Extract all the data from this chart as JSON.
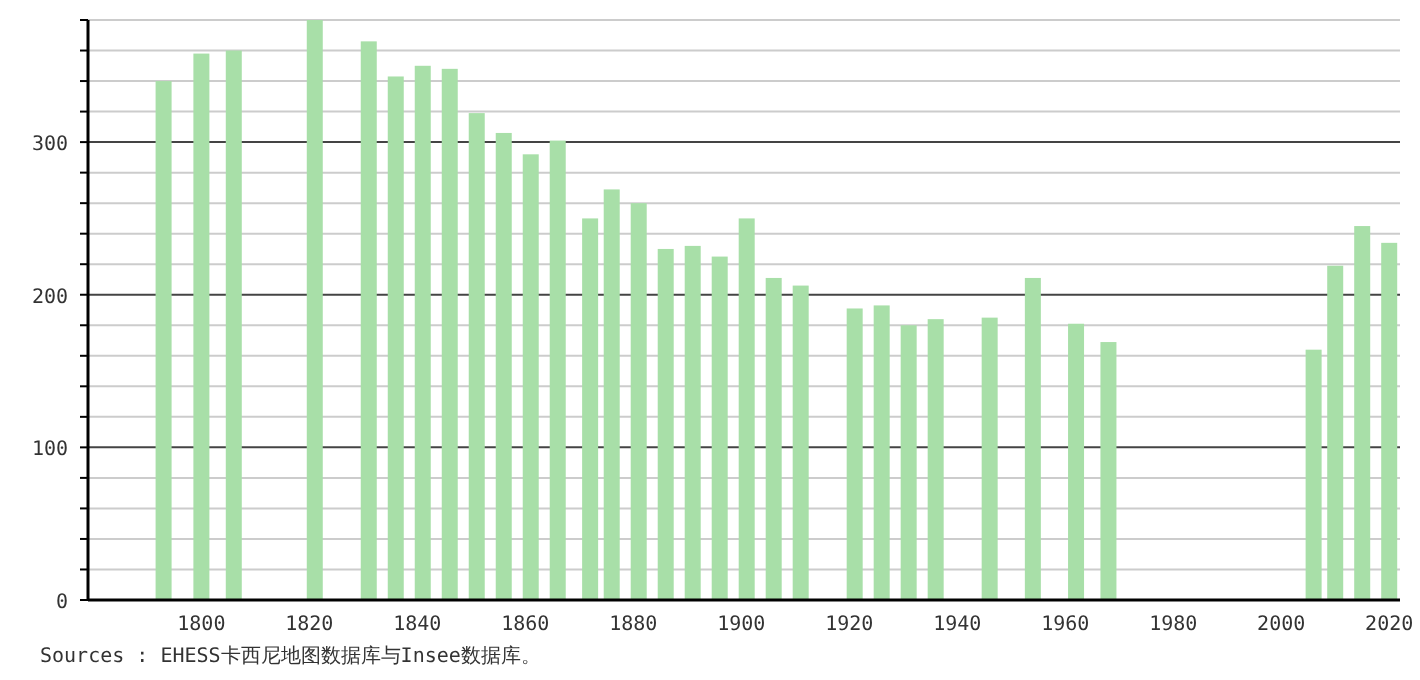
{
  "chart_data": {
    "type": "bar",
    "x": [
      1793,
      1800,
      1806,
      1821,
      1831,
      1836,
      1841,
      1846,
      1851,
      1856,
      1861,
      1866,
      1872,
      1876,
      1881,
      1886,
      1891,
      1896,
      1901,
      1906,
      1911,
      1921,
      1926,
      1931,
      1936,
      1946,
      1954,
      1962,
      1968,
      2006,
      2010,
      2015,
      2020
    ],
    "values": [
      340,
      358,
      360,
      380,
      366,
      343,
      350,
      348,
      319,
      306,
      292,
      301,
      250,
      269,
      260,
      230,
      232,
      225,
      250,
      211,
      206,
      191,
      193,
      180,
      184,
      185,
      211,
      181,
      169,
      164,
      219,
      245,
      234
    ],
    "color": "#a8dfa8",
    "xlim": [
      1779,
      2022
    ],
    "xticks": [
      1800,
      1820,
      1840,
      1860,
      1880,
      1900,
      1920,
      1940,
      1960,
      1980,
      2000,
      2020
    ],
    "ylim": [
      0,
      380
    ],
    "yticks": [
      0,
      {
        "value": 20,
        "label": null
      },
      {
        "value": 40,
        "label": null
      },
      {
        "value": 60,
        "label": null
      },
      {
        "value": 80,
        "label": null
      },
      100,
      {
        "value": 120,
        "label": null
      },
      {
        "value": 140,
        "label": null
      },
      {
        "value": 160,
        "label": null
      },
      {
        "value": 180,
        "label": null
      },
      200,
      {
        "value": 220,
        "label": null
      },
      {
        "value": 240,
        "label": null
      },
      {
        "value": 260,
        "label": null
      },
      {
        "value": 280,
        "label": null
      },
      300,
      {
        "value": 320,
        "label": null
      },
      {
        "value": 340,
        "label": null
      },
      {
        "value": 360,
        "label": null
      },
      {
        "value": 380,
        "label": null
      }
    ],
    "grid": "y",
    "annotations": [
      "Sources : EHESS卡西尼地图数据库与Insee数据库。"
    ]
  }
}
